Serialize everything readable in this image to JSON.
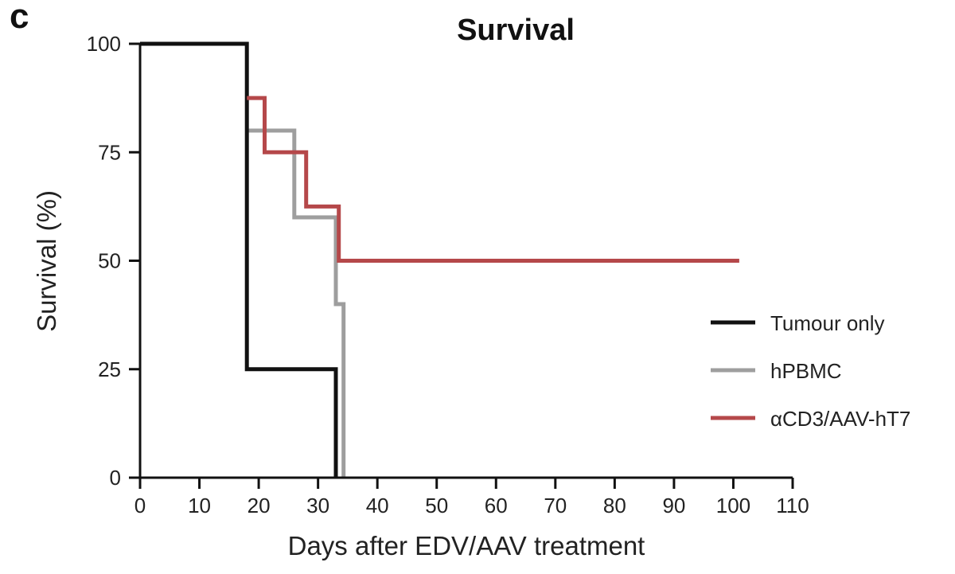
{
  "panel_label": "c",
  "chart_data": {
    "type": "line",
    "subtype": "kaplan-meier",
    "title": "Survival",
    "xlabel": "Days after EDV/AAV treatment",
    "ylabel": "Survival (%)",
    "xlim": [
      0,
      110
    ],
    "ylim": [
      0,
      100
    ],
    "xticks": [
      0,
      10,
      20,
      30,
      40,
      50,
      60,
      70,
      80,
      90,
      100,
      110
    ],
    "yticks": [
      0,
      25,
      50,
      75,
      100
    ],
    "grid": false,
    "legend_position": "right",
    "series": [
      {
        "name": "Tumour only",
        "color": "#111111",
        "steps": [
          [
            0,
            100
          ],
          [
            18,
            100
          ],
          [
            18,
            25
          ],
          [
            33,
            25
          ],
          [
            33,
            0
          ]
        ]
      },
      {
        "name": "hPBMC",
        "color": "#9e9e9e",
        "steps": [
          [
            18,
            80
          ],
          [
            26,
            80
          ],
          [
            26,
            60
          ],
          [
            33,
            60
          ],
          [
            33,
            40
          ],
          [
            34.3,
            40
          ],
          [
            34.3,
            0
          ]
        ]
      },
      {
        "name": "αCD3/AAV-hT7",
        "color": "#b5484a",
        "steps": [
          [
            18,
            87.5
          ],
          [
            21,
            87.5
          ],
          [
            21,
            75
          ],
          [
            28,
            75
          ],
          [
            28,
            62.5
          ],
          [
            33.5,
            62.5
          ],
          [
            33.5,
            50
          ],
          [
            101,
            50
          ]
        ]
      }
    ]
  }
}
